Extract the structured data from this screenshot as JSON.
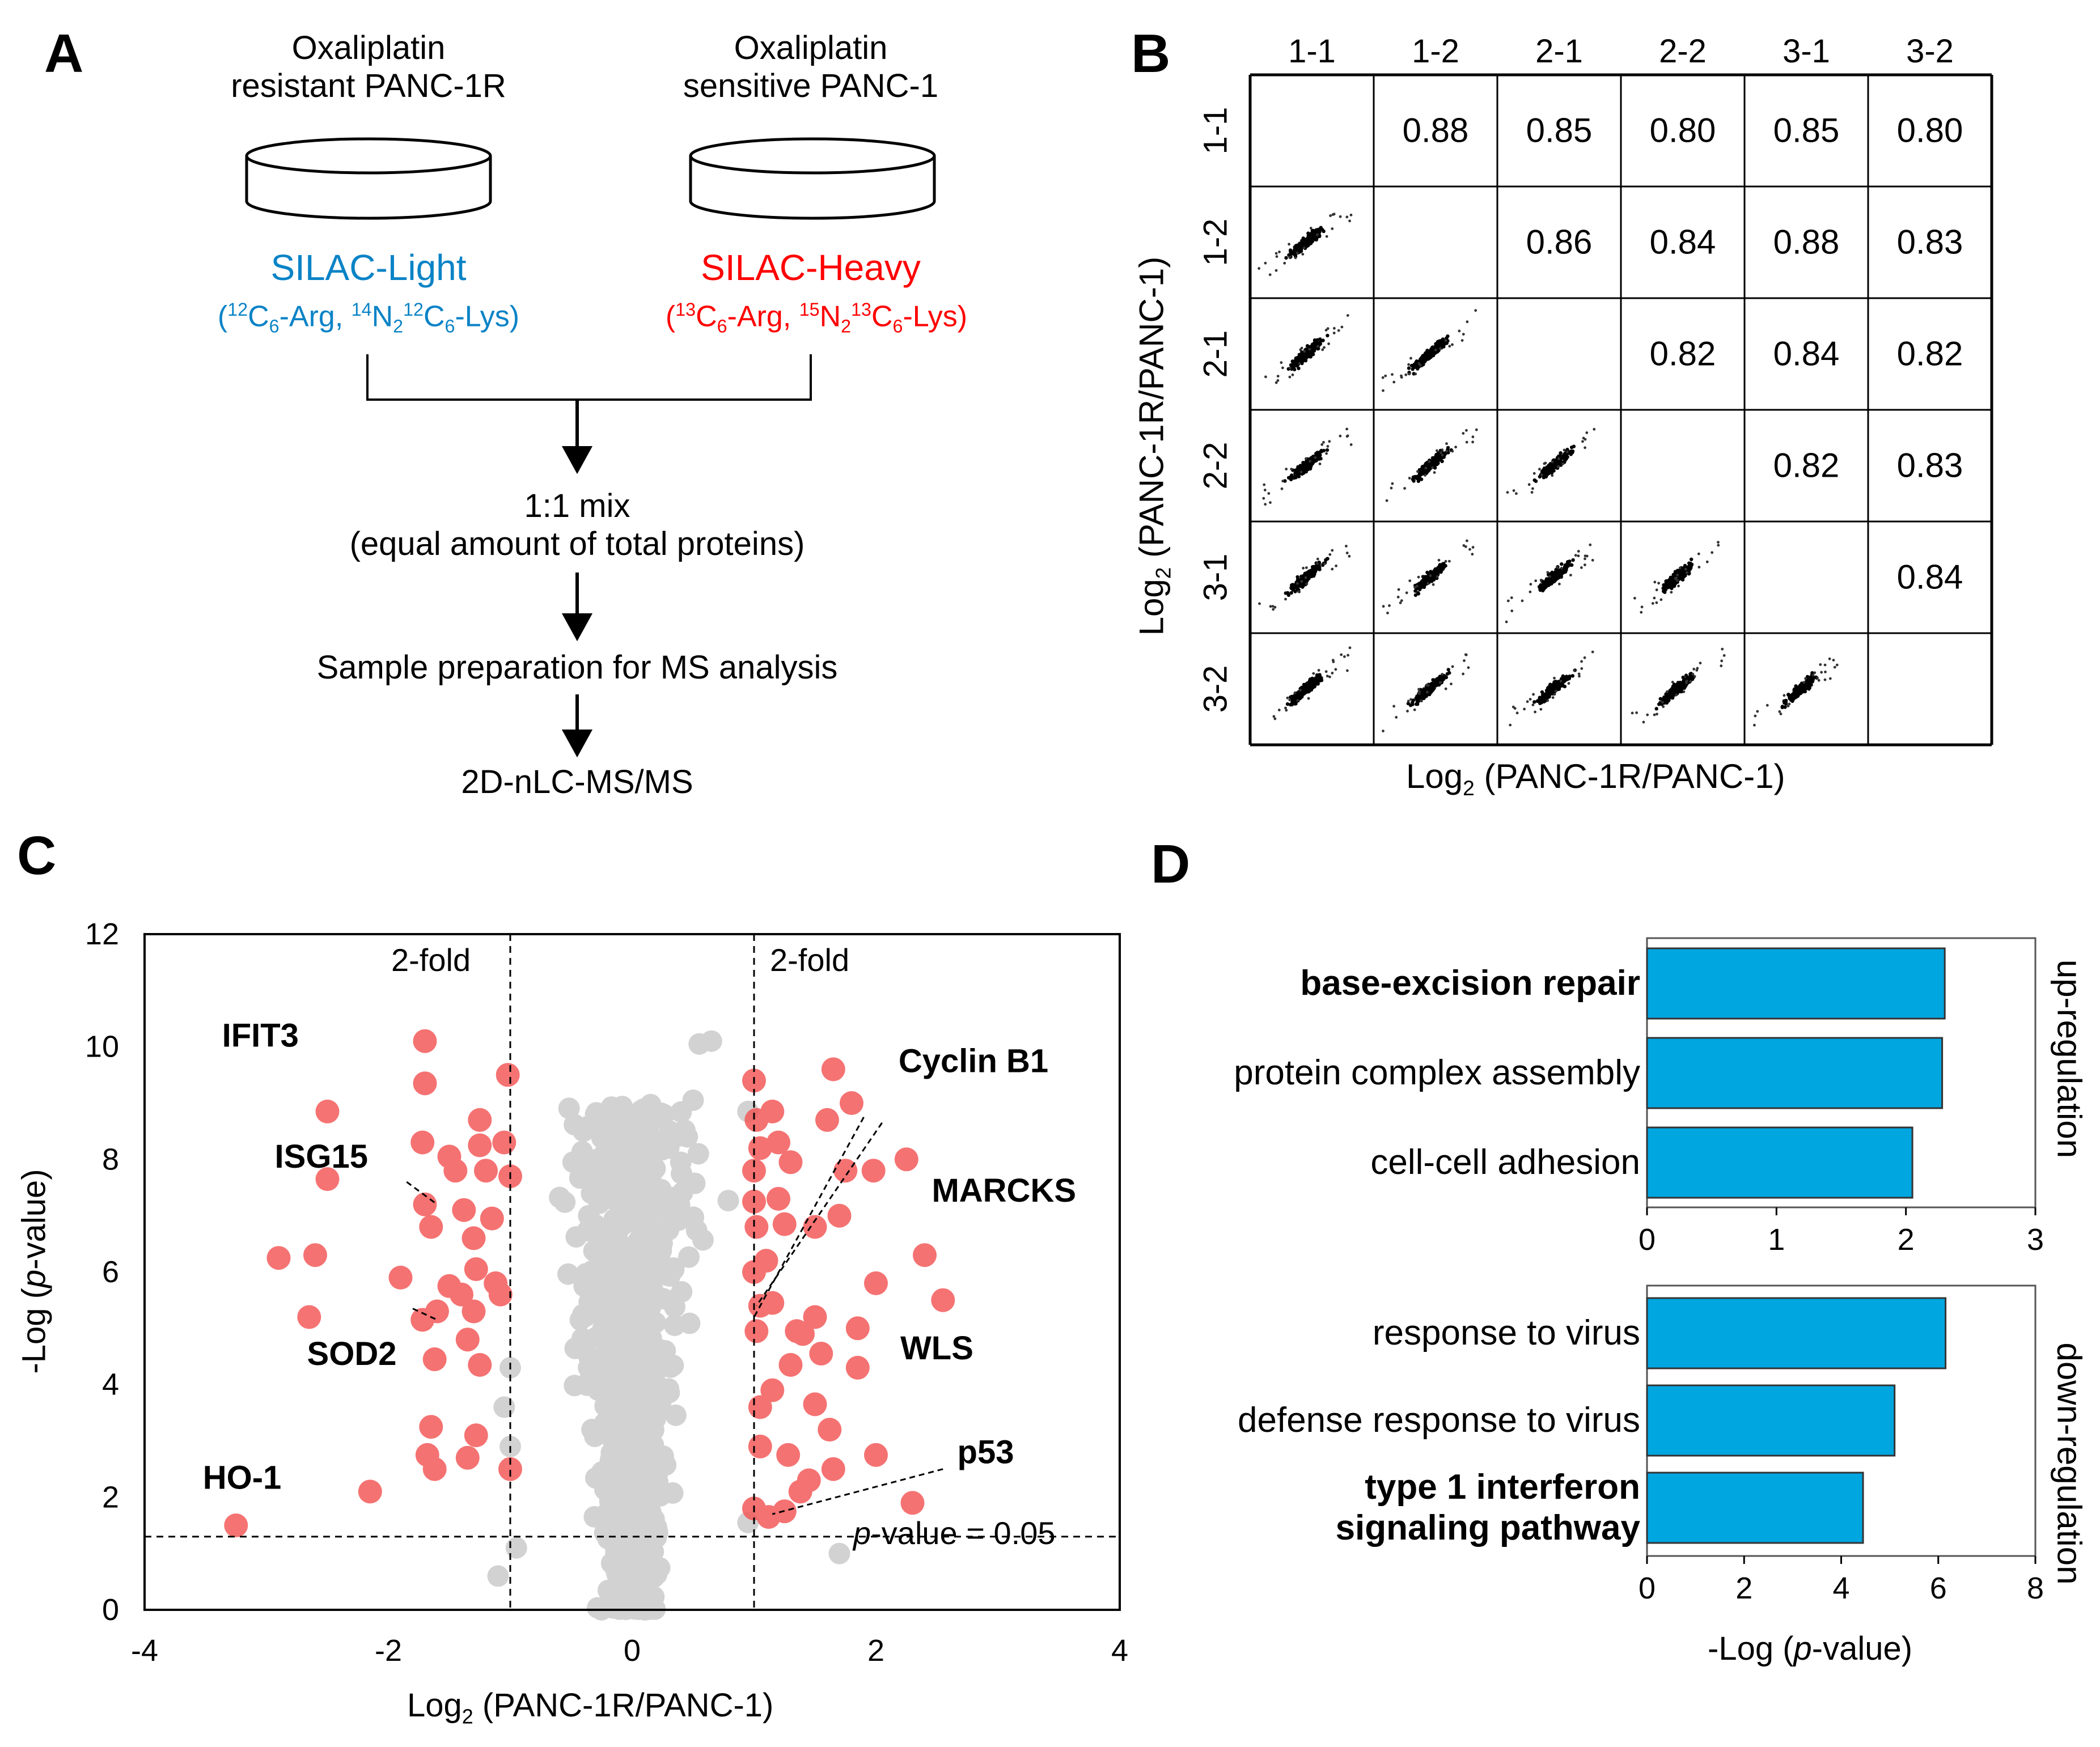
{
  "panels": {
    "a": "A",
    "b": "B",
    "c": "C",
    "d": "D"
  },
  "panel_a": {
    "resistant_title_line1": "Oxaliplatin",
    "resistant_title_line2": "resistant PANC-1R",
    "sensitive_title_line1": "Oxaliplatin",
    "sensitive_title_line2": "sensitive PANC-1",
    "light_label": "SILAC-Light",
    "heavy_label": "SILAC-Heavy",
    "light_isotopes": {
      "m1": "12",
      "c": "C",
      "s6a": "6",
      "arg": "-Arg, ",
      "m2": "14",
      "n": "N",
      "s2": "2",
      "m3": "12",
      "c2": "C",
      "s6b": "6",
      "lys": "-Lys)"
    },
    "heavy_isotopes": {
      "m1": "13",
      "c": "C",
      "s6a": "6",
      "arg": "-Arg, ",
      "m2": "15",
      "n": "N",
      "s2": "2",
      "m3": "13",
      "c2": "C",
      "s6b": "6",
      "lys": "-Lys)"
    },
    "mix_line1": "1:1 mix",
    "mix_line2": "(equal amount of total proteins)",
    "prep": "Sample preparation for MS analysis",
    "final": "2D-nLC-MS/MS"
  },
  "panel_b": {
    "labels": [
      "1-1",
      "1-2",
      "2-1",
      "2-2",
      "3-1",
      "3-2"
    ],
    "correlations": [
      [
        null,
        "0.88",
        "0.85",
        "0.80",
        "0.85",
        "0.80"
      ],
      [
        null,
        null,
        "0.86",
        "0.84",
        "0.88",
        "0.83"
      ],
      [
        null,
        null,
        null,
        "0.82",
        "0.84",
        "0.82"
      ],
      [
        null,
        null,
        null,
        null,
        "0.82",
        "0.83"
      ],
      [
        null,
        null,
        null,
        null,
        null,
        "0.84"
      ],
      [
        null,
        null,
        null,
        null,
        null,
        null
      ]
    ],
    "ylabel_pre": "Log",
    "ylabel_sub": "2",
    "ylabel_post": " (PANC-1R/PANC-1)",
    "xlabel_pre": "Log",
    "xlabel_sub": "2",
    "xlabel_post": " (PANC-1R/PANC-1)"
  },
  "chart_data": [
    {
      "type": "scatter",
      "name": "volcano",
      "xlim": [
        -4,
        4
      ],
      "ylim": [
        0,
        12
      ],
      "xticks": [
        -4,
        -2,
        0,
        2,
        4
      ],
      "yticks": [
        0,
        2,
        4,
        6,
        8,
        10,
        12
      ],
      "xlabel_pre": "Log",
      "xlabel_sub": "2",
      "xlabel_post": " (PANC-1R/PANC-1)",
      "ylabel_pre": "-Log (",
      "ylabel_ital": "p",
      "ylabel_post": "-value)",
      "fold_lines": [
        -1,
        1
      ],
      "fold_label": "2-fold",
      "pvalue_line": 1.3,
      "pvalue_label_ital": "p",
      "pvalue_label_rest": "-value = 0.05",
      "significant_color": "#f45a5a",
      "nonsignificant_color": "#a6a6a6",
      "significant_points": [
        [
          -3.25,
          1.5
        ],
        [
          -2.9,
          6.25
        ],
        [
          -2.6,
          6.3
        ],
        [
          -2.65,
          5.2
        ],
        [
          -2.5,
          8.85
        ],
        [
          -2.5,
          7.65
        ],
        [
          -2.15,
          2.1
        ],
        [
          -1.9,
          5.9
        ],
        [
          -1.7,
          10.1
        ],
        [
          -1.7,
          9.35
        ],
        [
          -1.72,
          8.3
        ],
        [
          -1.7,
          7.2
        ],
        [
          -1.65,
          6.8
        ],
        [
          -1.6,
          5.3
        ],
        [
          -1.72,
          5.15
        ],
        [
          -1.62,
          4.45
        ],
        [
          -1.65,
          3.25
        ],
        [
          -1.68,
          2.75
        ],
        [
          -1.62,
          2.5
        ],
        [
          -1.5,
          8.05
        ],
        [
          -1.45,
          7.8
        ],
        [
          -1.38,
          7.1
        ],
        [
          -1.3,
          6.6
        ],
        [
          -1.28,
          6.05
        ],
        [
          -1.5,
          5.75
        ],
        [
          -1.4,
          5.6
        ],
        [
          -1.3,
          5.3
        ],
        [
          -1.35,
          4.8
        ],
        [
          -1.25,
          8.7
        ],
        [
          -1.25,
          8.25
        ],
        [
          -1.2,
          7.8
        ],
        [
          -1.15,
          6.95
        ],
        [
          -1.12,
          5.8
        ],
        [
          -1.08,
          5.6
        ],
        [
          -1.25,
          4.35
        ],
        [
          -1.28,
          3.1
        ],
        [
          -1.35,
          2.7
        ],
        [
          -1.02,
          9.5
        ],
        [
          -1.05,
          8.3
        ],
        [
          -1.0,
          7.7
        ],
        [
          -1.0,
          2.5
        ],
        [
          1.0,
          9.4
        ],
        [
          1.02,
          8.7
        ],
        [
          1.05,
          8.2
        ],
        [
          1.0,
          7.8
        ],
        [
          1.0,
          7.25
        ],
        [
          1.02,
          6.8
        ],
        [
          1.0,
          6.0
        ],
        [
          1.05,
          5.4
        ],
        [
          1.02,
          4.95
        ],
        [
          1.05,
          3.6
        ],
        [
          1.05,
          2.9
        ],
        [
          1.0,
          1.8
        ],
        [
          1.12,
          1.65
        ],
        [
          1.15,
          8.85
        ],
        [
          1.2,
          8.3
        ],
        [
          1.3,
          7.95
        ],
        [
          1.2,
          7.3
        ],
        [
          1.25,
          6.85
        ],
        [
          1.1,
          6.2
        ],
        [
          1.15,
          5.45
        ],
        [
          1.35,
          4.95
        ],
        [
          1.4,
          4.9
        ],
        [
          1.3,
          4.35
        ],
        [
          1.28,
          2.75
        ],
        [
          1.38,
          2.1
        ],
        [
          1.6,
          8.7
        ],
        [
          1.7,
          7.0
        ],
        [
          1.5,
          6.8
        ],
        [
          1.5,
          5.2
        ],
        [
          1.55,
          4.55
        ],
        [
          1.62,
          3.2
        ],
        [
          1.65,
          2.5
        ],
        [
          1.65,
          9.6
        ],
        [
          1.75,
          7.8
        ],
        [
          1.8,
          9.0
        ],
        [
          1.85,
          5.0
        ],
        [
          1.85,
          4.3
        ],
        [
          1.98,
          7.8
        ],
        [
          2.0,
          5.8
        ],
        [
          2.0,
          2.75
        ],
        [
          2.25,
          8.0
        ],
        [
          2.4,
          6.3
        ],
        [
          2.55,
          5.5
        ],
        [
          2.3,
          1.9
        ],
        [
          1.25,
          1.75
        ],
        [
          1.45,
          2.3
        ],
        [
          1.15,
          3.9
        ],
        [
          1.5,
          3.65
        ]
      ],
      "labels": [
        {
          "text": "IFIT3",
          "x": -3.05,
          "y": 10.0
        },
        {
          "text": "ISG15",
          "x": -2.55,
          "y": 7.85
        },
        {
          "text": "SOD2",
          "x": -2.3,
          "y": 4.35
        },
        {
          "text": "HO-1",
          "x": -3.2,
          "y": 2.15
        },
        {
          "text": "Cyclin B1",
          "x": 2.8,
          "y": 9.55
        },
        {
          "text": "MARCKS",
          "x": 3.05,
          "y": 7.25
        },
        {
          "text": "WLS",
          "x": 2.5,
          "y": 4.45
        },
        {
          "text": "p53",
          "x": 2.9,
          "y": 2.6
        }
      ]
    },
    {
      "type": "bar",
      "orientation": "horizontal",
      "name": "go-up-regulation",
      "side_label": "up-regulation",
      "categories": [
        "base-excision repair",
        "protein complex assembly",
        "cell-cell adhesion"
      ],
      "bold": [
        true,
        false,
        false
      ],
      "values": [
        2.3,
        2.28,
        2.05
      ],
      "xlim": [
        0,
        3
      ],
      "xticks": [
        0,
        1,
        2,
        3
      ],
      "bar_color": "#00a6e0"
    },
    {
      "type": "bar",
      "orientation": "horizontal",
      "name": "go-down-regulation",
      "side_label": "down-regulation",
      "categories": [
        "response to virus",
        "defense response to virus",
        "type 1 interferon signaling pathway"
      ],
      "category_lines": [
        [
          "response to virus"
        ],
        [
          "defense response to virus"
        ],
        [
          "type 1 interferon",
          "signaling pathway"
        ]
      ],
      "bold": [
        false,
        false,
        true
      ],
      "values": [
        6.15,
        5.1,
        4.45
      ],
      "xlim": [
        0,
        8
      ],
      "xticks": [
        0,
        2,
        4,
        6,
        8
      ],
      "xlabel_pre": "-Log (",
      "xlabel_ital": "p",
      "xlabel_post": "-value)",
      "bar_color": "#00a6e0"
    }
  ]
}
